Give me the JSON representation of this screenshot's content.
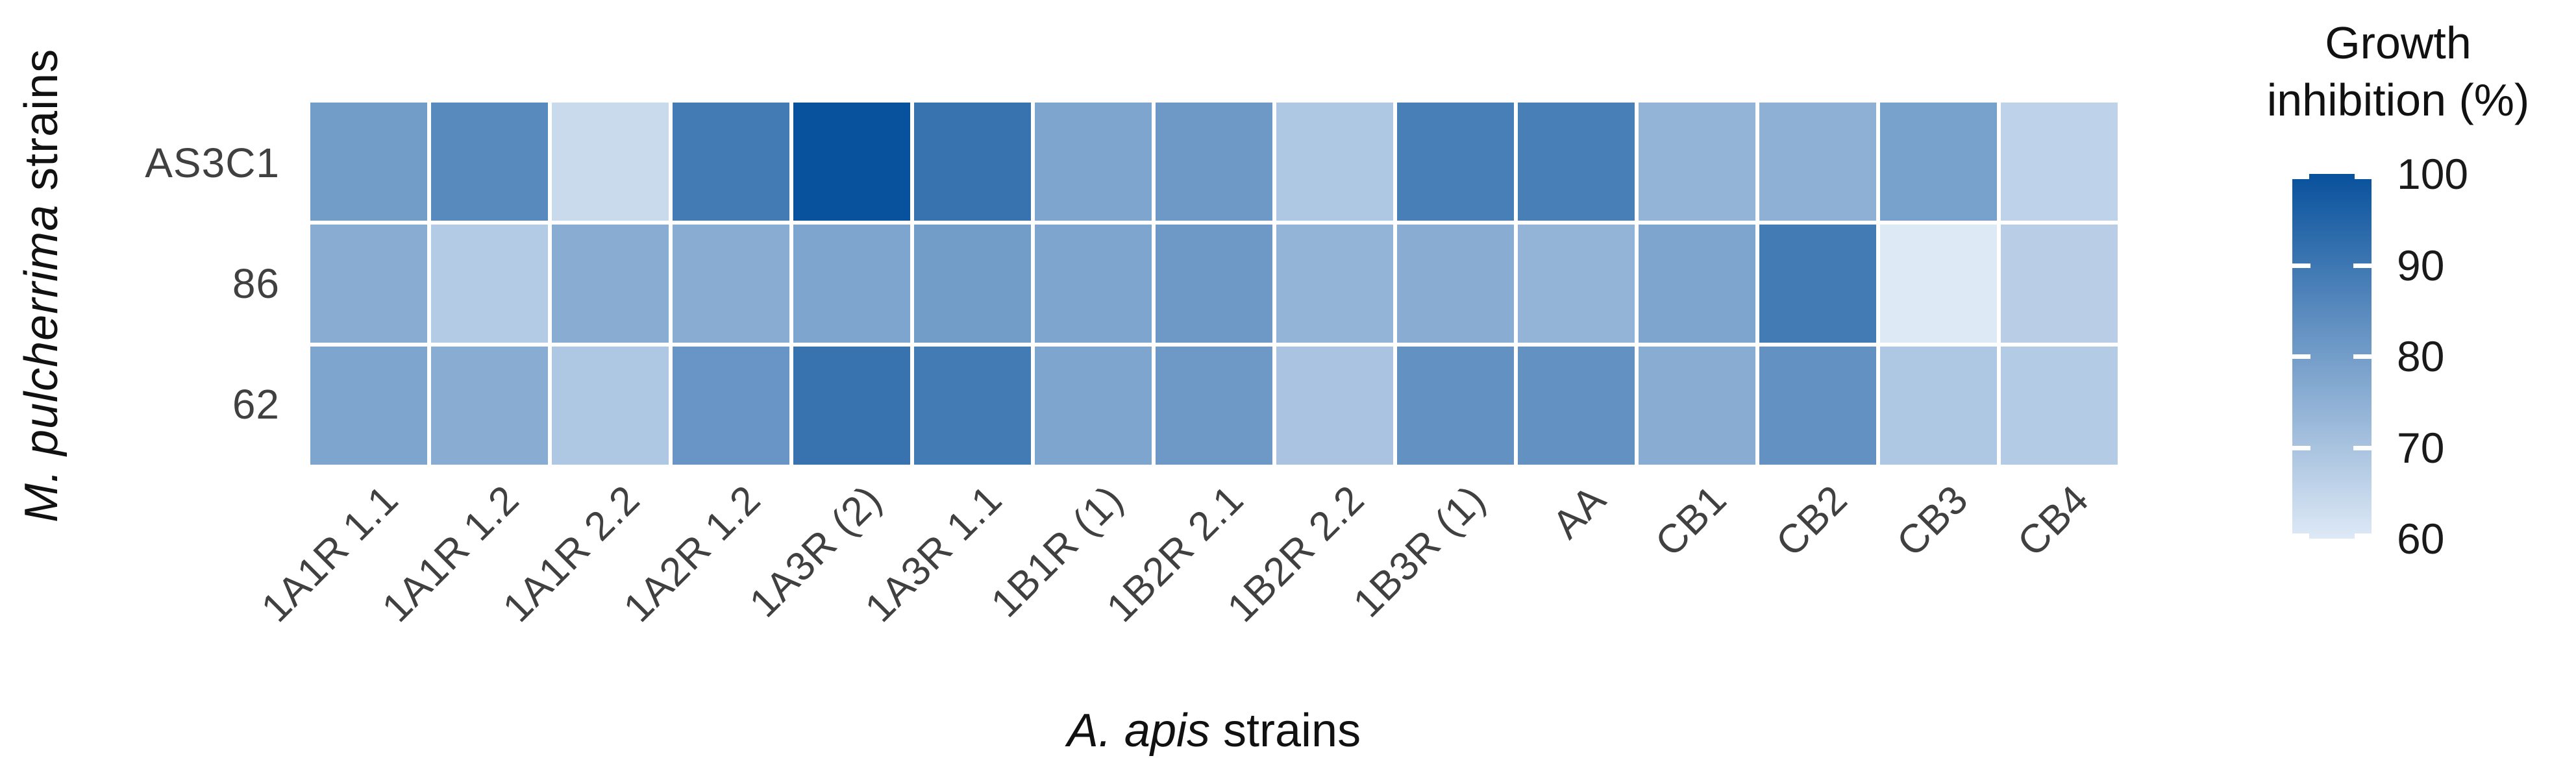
{
  "chart_data": {
    "type": "heatmap",
    "xlabel": {
      "italic": "A. apis",
      "regular": " strains"
    },
    "ylabel": {
      "italic": "M. pulcherrima",
      "regular": " strains"
    },
    "categories_x": [
      "1A1R 1.1",
      "1A1R 1.2",
      "1A1R 2.2",
      "1A2R 1.2",
      "1A3R (2)",
      "1A3R 1.1",
      "1B1R (1)",
      "1B2R 2.1",
      "1B2R 2.2",
      "1B3R (1)",
      "AA",
      "CB1",
      "CB2",
      "CB3",
      "CB4"
    ],
    "categories_y": [
      "AS3C1",
      "86",
      "62"
    ],
    "series": [
      {
        "name": "AS3C1",
        "values": [
          80,
          85,
          64,
          89,
          100,
          91,
          78,
          81,
          69,
          88,
          88,
          74,
          75,
          79,
          66
        ]
      },
      {
        "name": "86",
        "values": [
          76,
          68,
          76,
          76,
          78,
          80,
          78,
          81,
          74,
          76,
          74,
          78,
          89,
          60,
          67
        ]
      },
      {
        "name": "62",
        "values": [
          78,
          76,
          69,
          82,
          91,
          89,
          78,
          81,
          70,
          83,
          83,
          76,
          83,
          69,
          68
        ]
      }
    ],
    "value_min": 60,
    "value_max": 100,
    "grid": false,
    "legend": {
      "title_line1": "Growth",
      "title_line2": "inhibition (%)",
      "ticks": [
        100,
        90,
        80,
        70,
        60
      ],
      "position": "right",
      "color_high": "#08519c",
      "color_low": "#dee9f6"
    },
    "panel_background": "#ffffff",
    "cell_gap_color": "#ffffff"
  }
}
